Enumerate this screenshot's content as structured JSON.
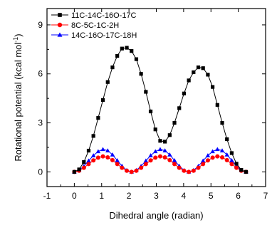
{
  "chart_data": {
    "type": "line",
    "xlabel": "Dihedral angle (radian)",
    "ylabel_parts": [
      "Rotational potential (kcal mol",
      "-1",
      ")"
    ],
    "xlim": [
      -1,
      7
    ],
    "ylim": [
      -0.9,
      10
    ],
    "x_ticks": [
      "-1",
      "0",
      "1",
      "2",
      "3",
      "4",
      "5",
      "6",
      "7"
    ],
    "y_ticks": [
      "0",
      "3",
      "6",
      "9"
    ],
    "legend_position": "top-left",
    "series": [
      {
        "name": "11C-14C-16O-17C",
        "color": "#000000",
        "marker": "square",
        "x": [
          0,
          0.175,
          0.35,
          0.524,
          0.698,
          0.873,
          1.047,
          1.222,
          1.396,
          1.571,
          1.745,
          1.92,
          2.094,
          2.269,
          2.443,
          2.618,
          2.793,
          2.967,
          3.142,
          3.316,
          3.491,
          3.665,
          3.84,
          4.014,
          4.189,
          4.363,
          4.538,
          4.712,
          4.887,
          5.061,
          5.236,
          5.411,
          5.585,
          5.76,
          5.934,
          6.109,
          6.283
        ],
        "y": [
          0,
          0.15,
          0.6,
          1.3,
          2.2,
          3.3,
          4.4,
          5.5,
          6.4,
          7.1,
          7.55,
          7.6,
          7.4,
          6.9,
          6.0,
          4.9,
          3.7,
          2.6,
          1.9,
          1.85,
          2.25,
          3.0,
          3.9,
          4.8,
          5.6,
          6.1,
          6.4,
          6.35,
          5.95,
          5.2,
          4.1,
          3.0,
          2.0,
          1.15,
          0.5,
          0.12,
          0
        ]
      },
      {
        "name": "8C-5C-1C-2H",
        "color": "#ff0000",
        "marker": "circle",
        "x": [
          0,
          0.175,
          0.35,
          0.524,
          0.698,
          0.873,
          1.047,
          1.222,
          1.396,
          1.571,
          1.745,
          1.92,
          2.094,
          2.269,
          2.443,
          2.618,
          2.793,
          2.967,
          3.142,
          3.316,
          3.491,
          3.665,
          3.84,
          4.014,
          4.189,
          4.363,
          4.538,
          4.712,
          4.887,
          5.061,
          5.236,
          5.411,
          5.585,
          5.76,
          5.934,
          6.109,
          6.283
        ],
        "y": [
          0,
          0.07,
          0.25,
          0.48,
          0.7,
          0.87,
          0.95,
          0.89,
          0.72,
          0.48,
          0.25,
          0.07,
          0,
          0.07,
          0.25,
          0.48,
          0.7,
          0.87,
          0.95,
          0.89,
          0.72,
          0.48,
          0.25,
          0.07,
          0,
          0.07,
          0.25,
          0.48,
          0.7,
          0.87,
          0.95,
          0.89,
          0.72,
          0.48,
          0.25,
          0.07,
          0
        ]
      },
      {
        "name": "14C-16O-17C-18H",
        "color": "#0000ff",
        "marker": "triangle",
        "x": [
          0,
          0.175,
          0.35,
          0.524,
          0.698,
          0.873,
          1.047,
          1.222,
          1.396,
          1.571,
          1.745,
          1.92,
          2.094,
          2.269,
          2.443,
          2.618,
          2.793,
          2.967,
          3.142,
          3.316,
          3.491,
          3.665,
          3.84,
          4.014,
          4.189,
          4.363,
          4.538,
          4.712,
          4.887,
          5.061,
          5.236,
          5.411,
          5.585,
          5.76,
          5.934,
          6.109,
          6.283
        ],
        "y": [
          0,
          0.1,
          0.35,
          0.68,
          1.0,
          1.25,
          1.38,
          1.3,
          1.05,
          0.7,
          0.36,
          0.1,
          0,
          0.1,
          0.35,
          0.68,
          1.0,
          1.25,
          1.38,
          1.3,
          1.05,
          0.7,
          0.36,
          0.1,
          0,
          0.1,
          0.35,
          0.68,
          1.0,
          1.25,
          1.38,
          1.3,
          1.05,
          0.7,
          0.36,
          0.1,
          0
        ]
      }
    ]
  }
}
